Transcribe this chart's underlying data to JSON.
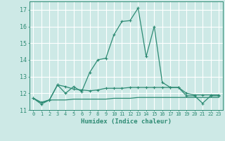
{
  "xlabel": "Humidex (Indice chaleur)",
  "x": [
    0,
    1,
    2,
    3,
    4,
    5,
    6,
    7,
    8,
    9,
    10,
    11,
    12,
    13,
    14,
    15,
    16,
    17,
    18,
    19,
    20,
    21,
    22,
    23
  ],
  "line1": [
    11.7,
    11.35,
    11.6,
    12.5,
    12.0,
    12.4,
    12.1,
    13.25,
    14.0,
    14.1,
    15.5,
    16.3,
    16.35,
    17.1,
    14.2,
    16.0,
    12.65,
    12.35,
    12.35,
    11.85,
    11.85,
    11.4,
    11.85,
    11.85
  ],
  "line2": [
    11.7,
    11.45,
    11.6,
    12.5,
    12.4,
    12.25,
    12.2,
    12.15,
    12.2,
    12.3,
    12.3,
    12.3,
    12.35,
    12.35,
    12.35,
    12.35,
    12.35,
    12.35,
    12.35,
    12.0,
    11.9,
    11.9,
    11.9,
    11.9
  ],
  "line3": [
    11.7,
    11.45,
    11.6,
    11.6,
    11.6,
    11.65,
    11.65,
    11.65,
    11.65,
    11.65,
    11.7,
    11.7,
    11.7,
    11.75,
    11.75,
    11.75,
    11.75,
    11.75,
    11.75,
    11.75,
    11.75,
    11.75,
    11.75,
    11.75
  ],
  "line_color": "#2e8b74",
  "bg_color": "#cde9e6",
  "grid_color": "#ffffff",
  "xlim": [
    -0.5,
    23.5
  ],
  "ylim": [
    11.0,
    17.5
  ],
  "yticks": [
    11,
    12,
    13,
    14,
    15,
    16,
    17
  ],
  "xticks": [
    0,
    1,
    2,
    3,
    4,
    5,
    6,
    7,
    8,
    9,
    10,
    11,
    12,
    13,
    14,
    15,
    16,
    17,
    18,
    19,
    20,
    21,
    22,
    23
  ],
  "xtick_labels": [
    "0",
    "1",
    "2",
    "3",
    "4",
    "5",
    "6",
    "7",
    "8",
    "9",
    "10",
    "11",
    "12",
    "13",
    "14",
    "15",
    "16",
    "17",
    "18",
    "19",
    "20",
    "21",
    "22",
    "23"
  ]
}
